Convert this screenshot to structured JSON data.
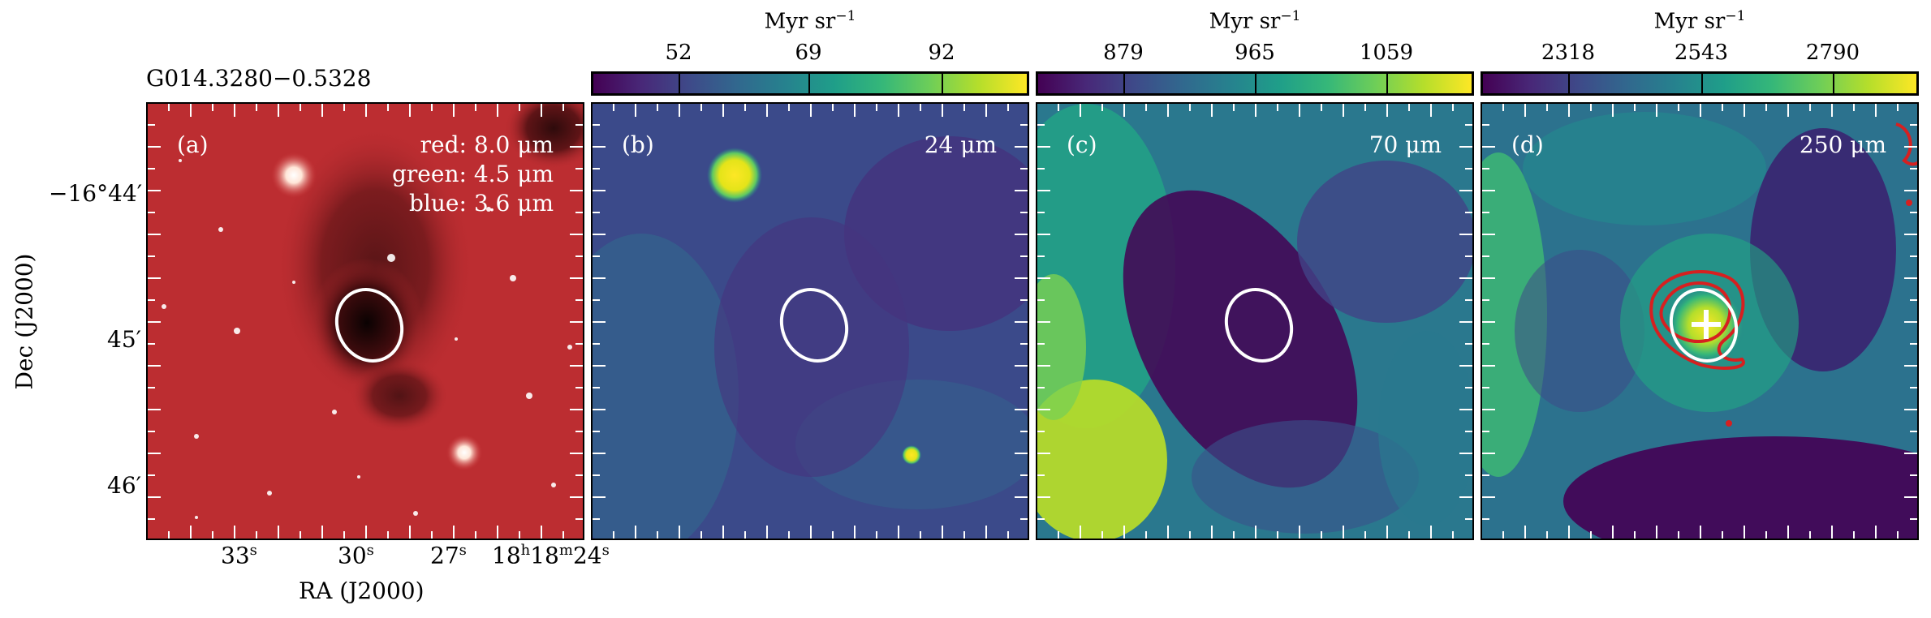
{
  "source_title": "G014.3280−0.5328",
  "panels": [
    {
      "label": "(a)",
      "band_lines": [
        "red: 8.0 μm",
        "green: 4.5 μm",
        "blue: 3.6 μm"
      ]
    },
    {
      "label": "(b)",
      "band": "24 μm"
    },
    {
      "label": "(c)",
      "band": "70 μm"
    },
    {
      "label": "(d)",
      "band": "250 μm"
    }
  ],
  "colorbars": [
    {
      "unit": "Myr sr",
      "unit_exp": "−1",
      "ticks": [
        "52",
        "69",
        "92"
      ]
    },
    {
      "unit": "Myr sr",
      "unit_exp": "−1",
      "ticks": [
        "879",
        "965",
        "1059"
      ]
    },
    {
      "unit": "Myr sr",
      "unit_exp": "−1",
      "ticks": [
        "2318",
        "2543",
        "2790"
      ]
    }
  ],
  "axes": {
    "ylabel": "Dec (J2000)",
    "xlabel": "RA (J2000)",
    "dec_ticks": [
      "−16°44′",
      "45′",
      "46′"
    ],
    "ra_ticks": [
      {
        "main": "33",
        "sup": "s"
      },
      {
        "main": "30",
        "sup": "s"
      },
      {
        "main": "27",
        "sup": "s"
      },
      {
        "main": "18",
        "sup": "h",
        "main2": "18",
        "sup2": "m",
        "main3": "24",
        "sup3": "s"
      }
    ]
  },
  "colormap": "viridis",
  "colors": {
    "ellipse": "#ffffff",
    "contour": "#d62020",
    "cross": "#ffffff"
  }
}
